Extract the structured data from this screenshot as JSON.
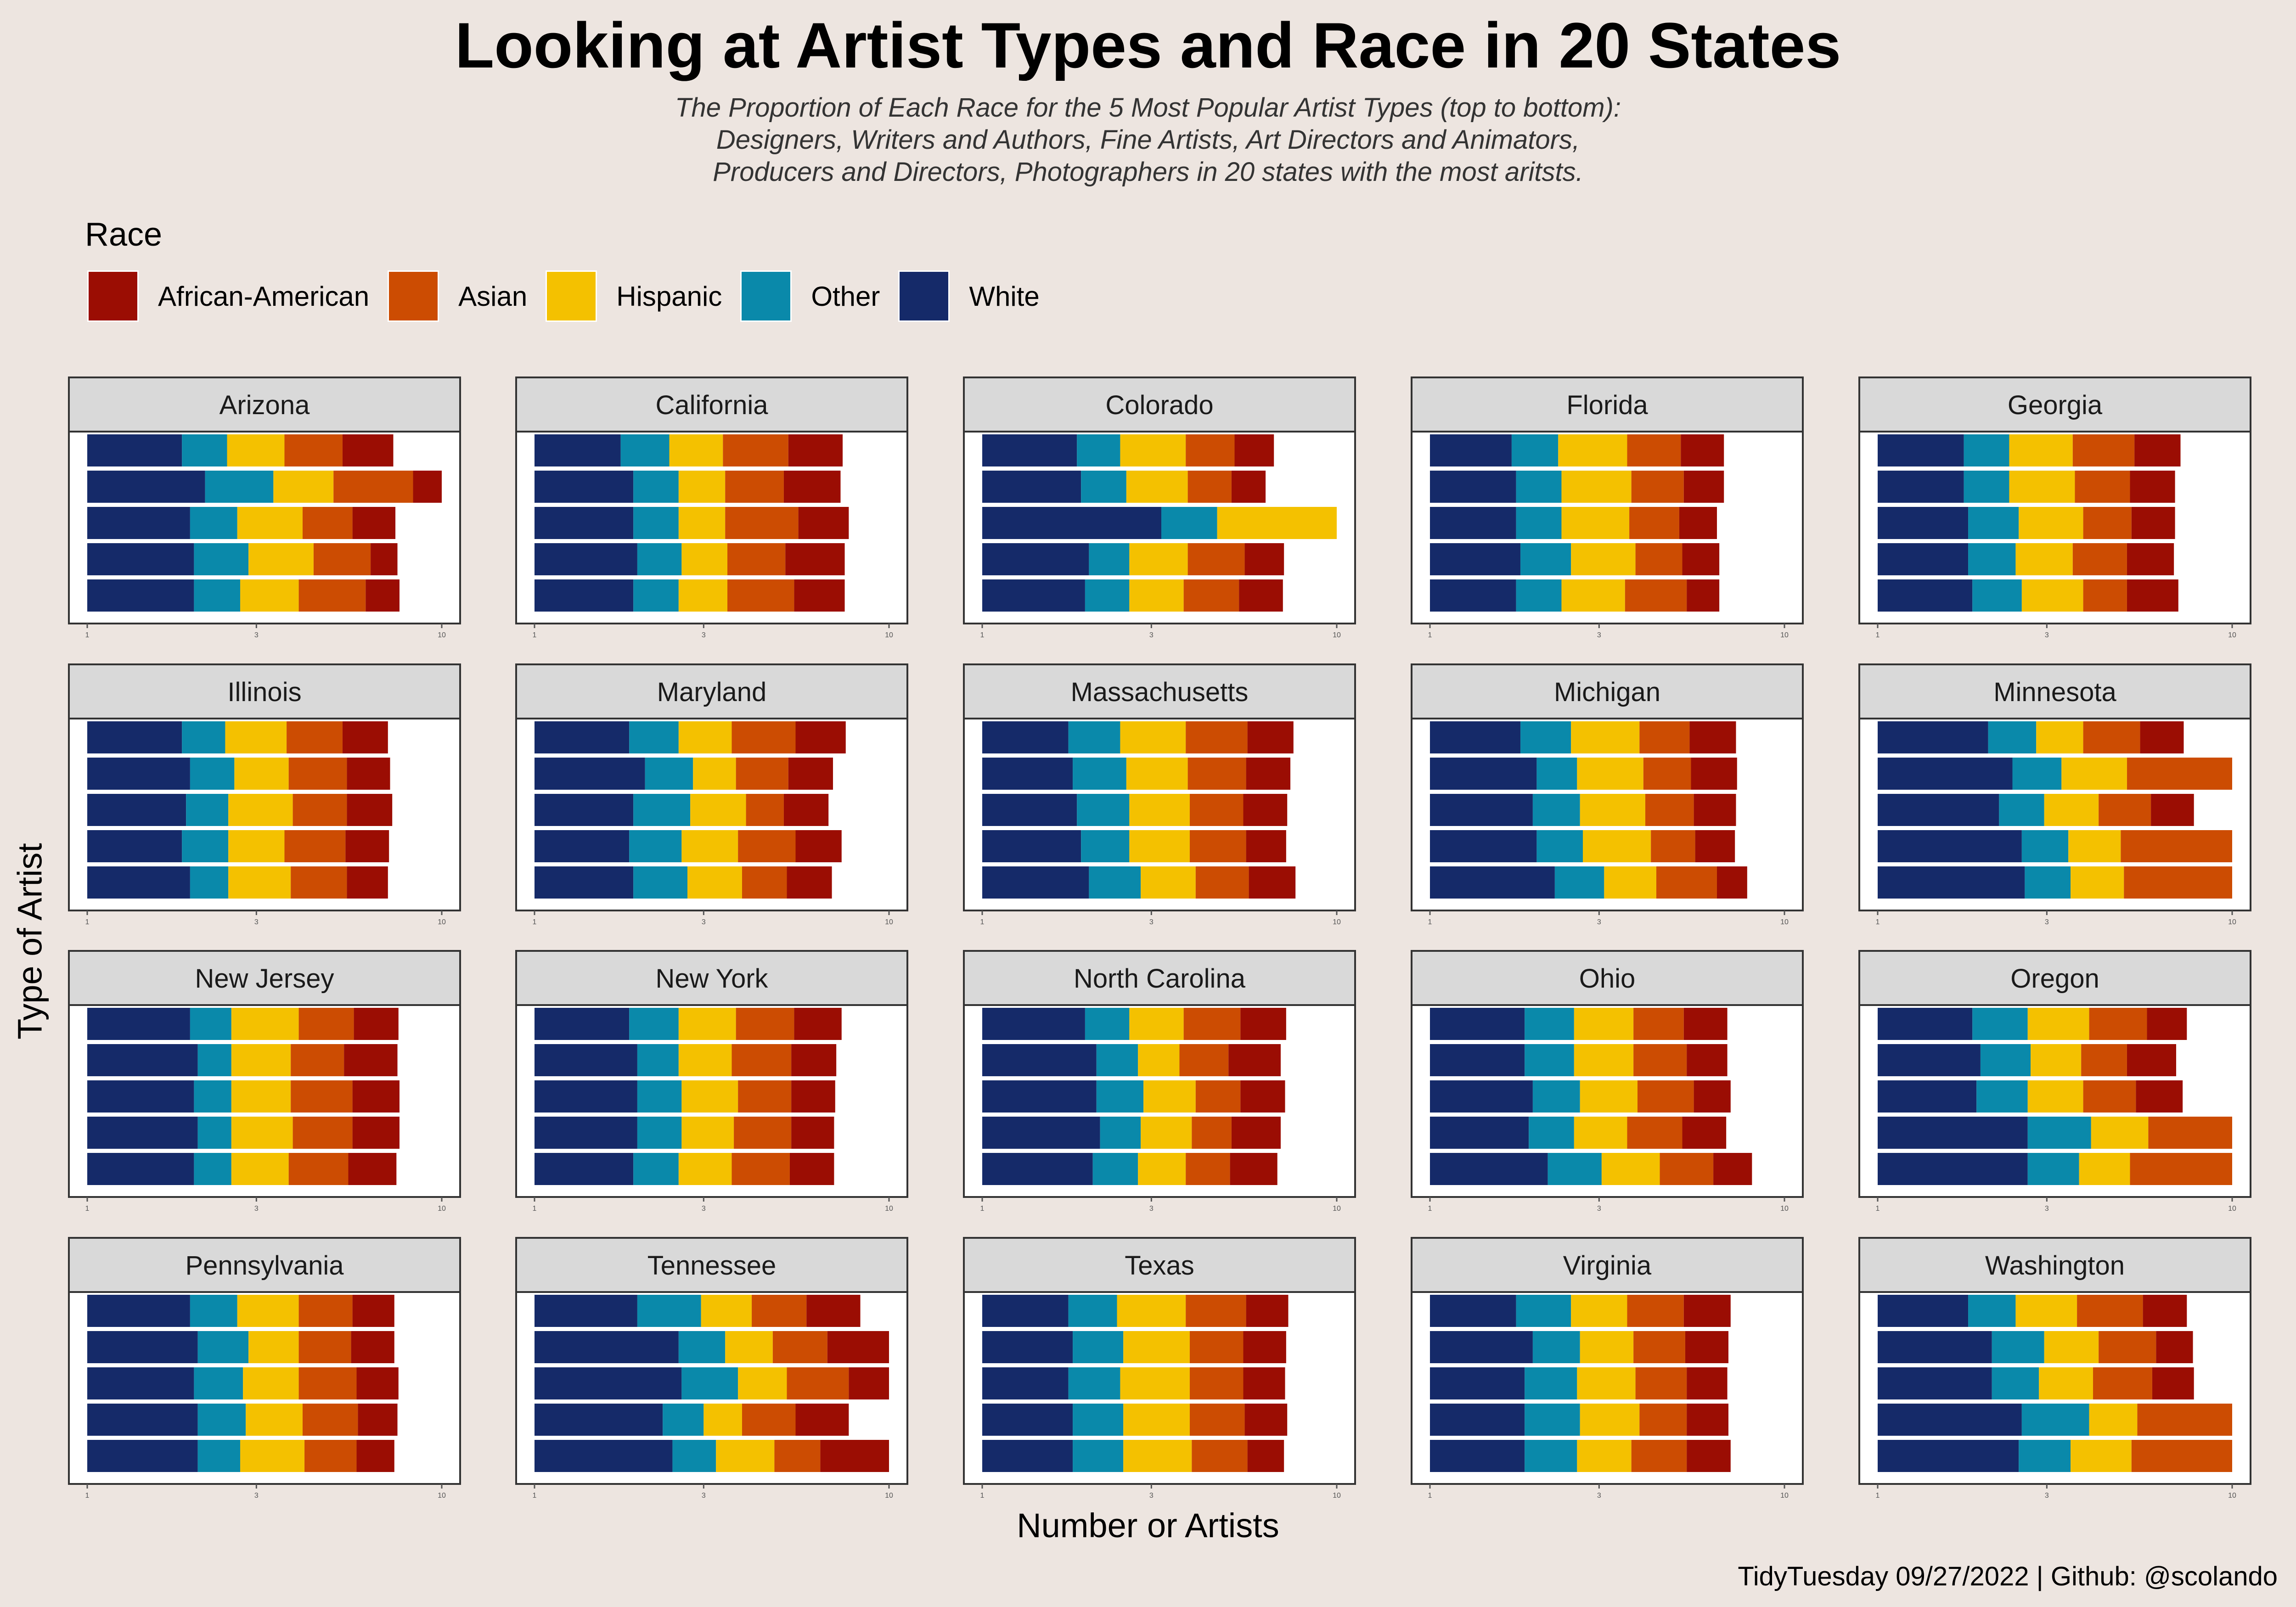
{
  "title": "Looking at Artist Types and Race in 20 States",
  "subtitle": [
    "The Proportion of Each Race for the 5 Most Popular Artist Types (top to bottom):",
    "Designers, Writers and Authors, Fine Artists, Art Directors and Animators,",
    "Producers and Directors, Photographers in 20 states with the most aritsts."
  ],
  "legend": {
    "title": "Race",
    "items": [
      {
        "label": "African-American",
        "color": "#9b0d03"
      },
      {
        "label": "Asian",
        "color": "#cc4c02"
      },
      {
        "label": "Hispanic",
        "color": "#f4c100"
      },
      {
        "label": "Other",
        "color": "#0a89aa"
      },
      {
        "label": "White",
        "color": "#152a69"
      }
    ]
  },
  "axis": {
    "xlabel": "Number or Artists",
    "ylabel": "Type of Artist",
    "xticks": [
      "1",
      "3",
      "10"
    ]
  },
  "caption": "TidyTuesday 09/27/2022 | Github: @scolando",
  "chart_data": {
    "type": "bar",
    "orientation": "horizontal",
    "stacked": true,
    "x_scale": "log10",
    "xlim": [
      1,
      10
    ],
    "segment_order": [
      "White",
      "Other",
      "Hispanic",
      "Asian",
      "African-American"
    ],
    "series_colors": {
      "White": "#152a69",
      "Other": "#0a89aa",
      "Hispanic": "#f4c100",
      "Asian": "#cc4c02",
      "African-American": "#9b0d03"
    },
    "facets": [
      {
        "state": "Arizona",
        "bars": [
          [
            1.85,
            2.48,
            3.6,
            5.25,
            7.3
          ],
          [
            2.15,
            3.35,
            4.95,
            8.3,
            10
          ],
          [
            1.95,
            2.65,
            4.05,
            5.6,
            7.4
          ],
          [
            2.0,
            2.85,
            4.35,
            6.3,
            7.5
          ],
          [
            2.0,
            2.7,
            3.95,
            6.1,
            7.6
          ]
        ]
      },
      {
        "state": "California",
        "bars": [
          [
            1.75,
            2.4,
            3.4,
            5.2,
            7.4
          ],
          [
            1.9,
            2.55,
            3.45,
            5.05,
            7.3
          ],
          [
            1.9,
            2.55,
            3.45,
            5.55,
            7.7
          ],
          [
            1.95,
            2.6,
            3.5,
            5.1,
            7.5
          ],
          [
            1.9,
            2.55,
            3.5,
            5.4,
            7.5
          ]
        ]
      },
      {
        "state": "Colorado",
        "bars": [
          [
            1.85,
            2.45,
            3.75,
            5.15,
            6.65
          ],
          [
            1.9,
            2.55,
            3.8,
            5.05,
            6.3
          ],
          [
            3.2,
            4.6,
            10,
            10,
            10
          ],
          [
            2.0,
            2.6,
            3.8,
            5.5,
            7.1
          ],
          [
            1.95,
            2.6,
            3.7,
            5.3,
            7.05
          ]
        ]
      },
      {
        "state": "Florida",
        "bars": [
          [
            1.7,
            2.3,
            3.6,
            5.1,
            6.75
          ],
          [
            1.75,
            2.35,
            3.7,
            5.2,
            6.75
          ],
          [
            1.75,
            2.35,
            3.65,
            5.05,
            6.45
          ],
          [
            1.8,
            2.5,
            3.8,
            5.15,
            6.55
          ],
          [
            1.75,
            2.35,
            3.55,
            5.3,
            6.55
          ]
        ]
      },
      {
        "state": "Georgia",
        "bars": [
          [
            1.75,
            2.35,
            3.55,
            5.3,
            7.15
          ],
          [
            1.75,
            2.35,
            3.6,
            5.15,
            6.9
          ],
          [
            1.8,
            2.5,
            3.8,
            5.2,
            6.9
          ],
          [
            1.8,
            2.45,
            3.55,
            5.05,
            6.85
          ],
          [
            1.85,
            2.55,
            3.8,
            5.05,
            7.05
          ]
        ]
      },
      {
        "state": "Illinois",
        "bars": [
          [
            1.85,
            2.45,
            3.65,
            5.25,
            7.05
          ],
          [
            1.95,
            2.6,
            3.7,
            5.4,
            7.15
          ],
          [
            1.9,
            2.5,
            3.8,
            5.4,
            7.25
          ],
          [
            1.85,
            2.5,
            3.6,
            5.35,
            7.1
          ],
          [
            1.95,
            2.5,
            3.75,
            5.4,
            7.05
          ]
        ]
      },
      {
        "state": "Maryland",
        "bars": [
          [
            1.85,
            2.55,
            3.6,
            5.45,
            7.55
          ],
          [
            2.05,
            2.8,
            3.7,
            5.2,
            6.95
          ],
          [
            1.9,
            2.75,
            3.95,
            5.05,
            6.75
          ],
          [
            1.85,
            2.6,
            3.75,
            5.45,
            7.35
          ],
          [
            1.9,
            2.7,
            3.85,
            5.15,
            6.9
          ]
        ]
      },
      {
        "state": "Massachusetts",
        "bars": [
          [
            1.75,
            2.45,
            3.75,
            5.6,
            7.55
          ],
          [
            1.8,
            2.55,
            3.8,
            5.55,
            7.4
          ],
          [
            1.85,
            2.6,
            3.85,
            5.45,
            7.25
          ],
          [
            1.9,
            2.6,
            3.85,
            5.55,
            7.2
          ],
          [
            2.0,
            2.8,
            4.0,
            5.65,
            7.65
          ]
        ]
      },
      {
        "state": "Michigan",
        "bars": [
          [
            1.8,
            2.5,
            3.9,
            5.4,
            7.3
          ],
          [
            2.0,
            2.6,
            4.0,
            5.45,
            7.35
          ],
          [
            1.95,
            2.65,
            4.05,
            5.55,
            7.3
          ],
          [
            2.0,
            2.7,
            4.2,
            5.6,
            7.25
          ],
          [
            2.25,
            3.1,
            4.35,
            6.45,
            7.85
          ]
        ]
      },
      {
        "state": "Minnesota",
        "bars": [
          [
            2.05,
            2.8,
            3.8,
            5.5,
            7.3
          ],
          [
            2.4,
            3.3,
            5.05,
            10,
            10
          ],
          [
            2.2,
            2.95,
            4.2,
            5.9,
            7.8
          ],
          [
            2.55,
            3.45,
            4.85,
            10,
            10
          ],
          [
            2.6,
            3.5,
            4.95,
            10,
            10
          ]
        ]
      },
      {
        "state": "New Jersey",
        "bars": [
          [
            1.95,
            2.55,
            3.95,
            5.65,
            7.55
          ],
          [
            2.05,
            2.55,
            3.75,
            5.3,
            7.5
          ],
          [
            2.0,
            2.55,
            3.75,
            5.6,
            7.6
          ],
          [
            2.05,
            2.55,
            3.8,
            5.6,
            7.6
          ],
          [
            2.0,
            2.55,
            3.7,
            5.45,
            7.45
          ]
        ]
      },
      {
        "state": "New York",
        "bars": [
          [
            1.85,
            2.55,
            3.7,
            5.4,
            7.35
          ],
          [
            1.95,
            2.55,
            3.6,
            5.3,
            7.1
          ],
          [
            1.95,
            2.6,
            3.75,
            5.3,
            7.05
          ],
          [
            1.95,
            2.6,
            3.65,
            5.3,
            7.0
          ],
          [
            1.9,
            2.55,
            3.6,
            5.25,
            7.0
          ]
        ]
      },
      {
        "state": "North Carolina",
        "bars": [
          [
            1.95,
            2.6,
            3.7,
            5.35,
            7.2
          ],
          [
            2.1,
            2.75,
            3.6,
            4.95,
            6.95
          ],
          [
            2.1,
            2.85,
            4.0,
            5.35,
            7.15
          ],
          [
            2.15,
            2.8,
            3.9,
            5.05,
            6.95
          ],
          [
            2.05,
            2.75,
            3.75,
            5.0,
            6.8
          ]
        ]
      },
      {
        "state": "Ohio",
        "bars": [
          [
            1.85,
            2.55,
            3.75,
            5.2,
            6.9
          ],
          [
            1.85,
            2.55,
            3.75,
            5.3,
            6.9
          ],
          [
            1.95,
            2.65,
            3.85,
            5.55,
            7.05
          ],
          [
            1.9,
            2.55,
            3.6,
            5.15,
            6.85
          ],
          [
            2.15,
            3.05,
            4.45,
            6.3,
            8.1
          ]
        ]
      },
      {
        "state": "Oregon",
        "bars": [
          [
            1.85,
            2.65,
            3.95,
            5.75,
            7.45
          ],
          [
            1.95,
            2.7,
            3.75,
            5.05,
            6.95
          ],
          [
            1.9,
            2.65,
            3.8,
            5.35,
            7.25
          ],
          [
            2.65,
            4.0,
            5.8,
            10,
            10
          ],
          [
            2.65,
            3.7,
            5.15,
            10,
            10
          ]
        ]
      },
      {
        "state": "Pennsylvania",
        "bars": [
          [
            1.95,
            2.65,
            3.95,
            5.6,
            7.35
          ],
          [
            2.05,
            2.85,
            3.95,
            5.55,
            7.35
          ],
          [
            2.0,
            2.75,
            3.95,
            5.75,
            7.55
          ],
          [
            2.05,
            2.8,
            4.05,
            5.8,
            7.5
          ],
          [
            2.05,
            2.7,
            4.1,
            5.75,
            7.35
          ]
        ]
      },
      {
        "state": "Tennessee",
        "bars": [
          [
            1.95,
            2.95,
            4.1,
            5.85,
            8.3
          ],
          [
            2.55,
            3.45,
            4.7,
            6.7,
            10
          ],
          [
            2.6,
            3.75,
            5.15,
            7.7,
            10
          ],
          [
            2.3,
            3.0,
            3.85,
            5.45,
            7.7
          ],
          [
            2.45,
            3.25,
            4.75,
            6.4,
            10
          ]
        ]
      },
      {
        "state": "Texas",
        "bars": [
          [
            1.75,
            2.4,
            3.75,
            5.55,
            7.3
          ],
          [
            1.8,
            2.5,
            3.85,
            5.45,
            7.2
          ],
          [
            1.75,
            2.45,
            3.85,
            5.45,
            7.15
          ],
          [
            1.8,
            2.5,
            3.85,
            5.5,
            7.25
          ],
          [
            1.8,
            2.5,
            3.9,
            5.6,
            7.1
          ]
        ]
      },
      {
        "state": "Virginia",
        "bars": [
          [
            1.75,
            2.5,
            3.6,
            5.2,
            7.05
          ],
          [
            1.95,
            2.65,
            3.75,
            5.25,
            6.95
          ],
          [
            1.85,
            2.6,
            3.8,
            5.3,
            6.9
          ],
          [
            1.85,
            2.65,
            3.9,
            5.3,
            6.95
          ],
          [
            1.85,
            2.6,
            3.7,
            5.3,
            7.05
          ]
        ]
      },
      {
        "state": "Washington",
        "bars": [
          [
            1.8,
            2.45,
            3.65,
            5.6,
            7.45
          ],
          [
            2.1,
            2.95,
            4.2,
            6.1,
            7.75
          ],
          [
            2.1,
            2.85,
            4.05,
            5.95,
            7.8
          ],
          [
            2.55,
            3.95,
            5.4,
            10,
            10
          ],
          [
            2.5,
            3.5,
            5.2,
            10,
            10
          ]
        ]
      }
    ]
  }
}
